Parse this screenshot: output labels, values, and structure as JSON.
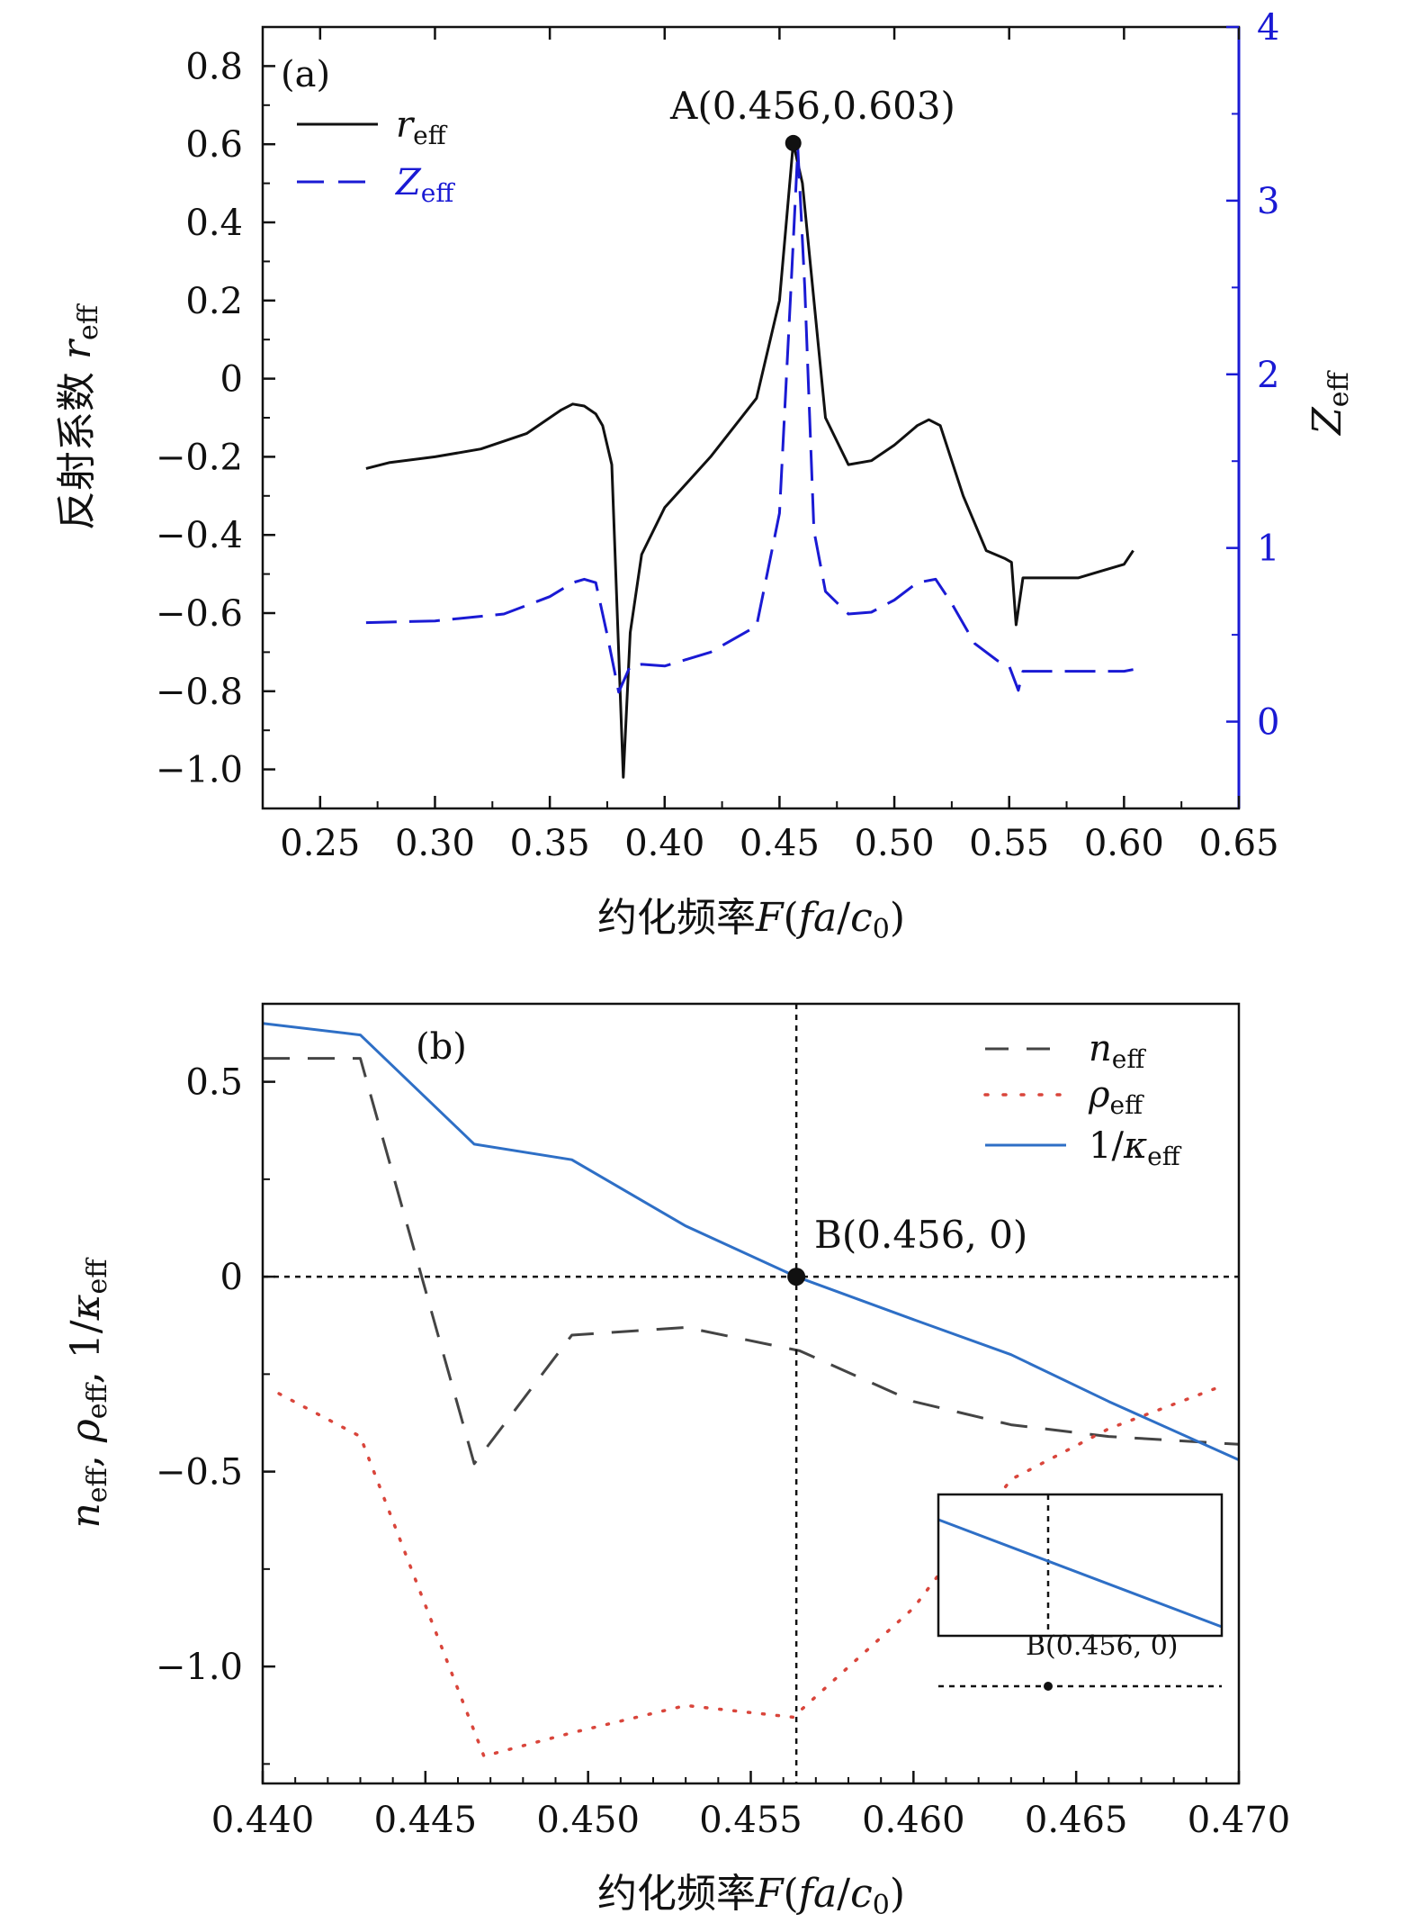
{
  "colors": {
    "black": "#111111",
    "blue_dashed": "#1a1ad4",
    "blue_solid": "#2e6fc6",
    "gray": "#444444",
    "red": "#d9453b"
  },
  "chart_data": [
    {
      "type": "line",
      "panel": "(a)",
      "xlabel": "约化频率F(fa/c0)",
      "ylabel_left": "反射系数 r_eff",
      "ylabel_right": "Z_eff",
      "xlim": [
        0.225,
        0.65
      ],
      "ylim_left": [
        -1.1,
        0.9
      ],
      "ylim_right": [
        -0.5,
        4
      ],
      "xticks": [
        0.25,
        0.3,
        0.35,
        0.4,
        0.45,
        0.5,
        0.55,
        0.6,
        0.65
      ],
      "xtick_labels": [
        "0.25",
        "0.30",
        "0.35",
        "0.40",
        "0.45",
        "0.50",
        "0.55",
        "0.60",
        "0.65"
      ],
      "yticks_left": [
        0.8,
        0.6,
        0.4,
        0.2,
        0,
        -0.2,
        -0.4,
        -0.6,
        -0.8,
        -1.0
      ],
      "ytick_labels_left": [
        "0.8",
        "0.6",
        "0.4",
        "0.2",
        "0",
        "−0.2",
        "−0.4",
        "−0.6",
        "−0.8",
        "−1.0"
      ],
      "yticks_right": [
        0,
        1,
        2,
        3,
        4
      ],
      "ytick_labels_right": [
        "0",
        "1",
        "2",
        "3",
        "4"
      ],
      "legend": [
        "r_eff",
        "Z_eff"
      ],
      "annotation": {
        "label": "A(0.456,0.603)",
        "x": 0.456,
        "y": 0.603
      },
      "series": [
        {
          "name": "r_eff",
          "axis": "left",
          "style": "solid",
          "x": [
            0.27,
            0.28,
            0.3,
            0.32,
            0.34,
            0.355,
            0.36,
            0.365,
            0.37,
            0.373,
            0.377,
            0.382,
            0.385,
            0.39,
            0.4,
            0.42,
            0.44,
            0.45,
            0.456,
            0.46,
            0.465,
            0.47,
            0.48,
            0.49,
            0.5,
            0.51,
            0.515,
            0.52,
            0.53,
            0.54,
            0.548,
            0.551,
            0.553,
            0.556,
            0.58,
            0.6,
            0.604
          ],
          "y": [
            -0.23,
            -0.215,
            -0.2,
            -0.18,
            -0.14,
            -0.08,
            -0.065,
            -0.07,
            -0.09,
            -0.12,
            -0.22,
            -1.02,
            -0.65,
            -0.45,
            -0.33,
            -0.2,
            -0.05,
            0.2,
            0.603,
            0.5,
            0.2,
            -0.1,
            -0.22,
            -0.21,
            -0.17,
            -0.12,
            -0.105,
            -0.12,
            -0.3,
            -0.44,
            -0.46,
            -0.47,
            -0.63,
            -0.51,
            -0.51,
            -0.475,
            -0.44
          ]
        },
        {
          "name": "Z_eff",
          "axis": "right",
          "style": "dashed",
          "x": [
            0.27,
            0.3,
            0.33,
            0.35,
            0.36,
            0.365,
            0.37,
            0.375,
            0.38,
            0.385,
            0.39,
            0.4,
            0.42,
            0.44,
            0.45,
            0.455,
            0.458,
            0.461,
            0.465,
            0.47,
            0.48,
            0.49,
            0.5,
            0.51,
            0.518,
            0.525,
            0.535,
            0.545,
            0.55,
            0.554,
            0.556,
            0.58,
            0.6,
            0.604
          ],
          "y": [
            0.57,
            0.58,
            0.62,
            0.72,
            0.8,
            0.82,
            0.8,
            0.5,
            0.17,
            0.32,
            0.33,
            0.32,
            0.4,
            0.55,
            1.2,
            2.5,
            3.3,
            2.5,
            1.1,
            0.75,
            0.62,
            0.63,
            0.7,
            0.8,
            0.82,
            0.68,
            0.45,
            0.35,
            0.32,
            0.18,
            0.29,
            0.29,
            0.29,
            0.3
          ]
        }
      ]
    },
    {
      "type": "line",
      "panel": "(b)",
      "xlabel": "约化频率F(fa/c0)",
      "ylabel": "n_eff, ρ_eff, 1/κ_eff",
      "xlim": [
        0.44,
        0.47
      ],
      "ylim": [
        -1.3,
        0.7
      ],
      "xticks": [
        0.44,
        0.445,
        0.45,
        0.455,
        0.46,
        0.465,
        0.47
      ],
      "xtick_labels": [
        "0.440",
        "0.445",
        "0.450",
        "0.455",
        "0.460",
        "0.465",
        "0.470"
      ],
      "yticks": [
        0.5,
        0,
        -0.5,
        -1.0
      ],
      "ytick_labels": [
        "0.5",
        "0",
        "−0.5",
        "−1.0"
      ],
      "legend": [
        "n_eff",
        "ρ_eff",
        "1/κ_eff"
      ],
      "annotation": {
        "label": "B(0.456, 0)",
        "x": 0.4564,
        "y": 0
      },
      "inset_annotation": "B(0.456, 0)",
      "series": [
        {
          "name": "n_eff",
          "style": "dashed",
          "x": [
            0.44,
            0.443,
            0.4465,
            0.4495,
            0.453,
            0.4565,
            0.46,
            0.463,
            0.466,
            0.47
          ],
          "y": [
            0.56,
            0.56,
            -0.48,
            -0.15,
            -0.13,
            -0.19,
            -0.32,
            -0.38,
            -0.41,
            -0.43
          ]
        },
        {
          "name": "ρ_eff",
          "style": "dotted",
          "x": [
            0.4405,
            0.443,
            0.4448,
            0.4468,
            0.4495,
            0.453,
            0.4563,
            0.46,
            0.463,
            0.466,
            0.4695
          ],
          "y": [
            -0.3,
            -0.41,
            -0.8,
            -1.23,
            -1.17,
            -1.1,
            -1.13,
            -0.85,
            -0.52,
            -0.39,
            -0.28
          ]
        },
        {
          "name": "1/κ_eff",
          "style": "solid",
          "x": [
            0.44,
            0.443,
            0.4465,
            0.4495,
            0.453,
            0.4564,
            0.46,
            0.463,
            0.466,
            0.47
          ],
          "y": [
            0.65,
            0.62,
            0.34,
            0.3,
            0.13,
            0.0,
            -0.11,
            -0.2,
            -0.32,
            -0.47
          ]
        }
      ]
    }
  ]
}
